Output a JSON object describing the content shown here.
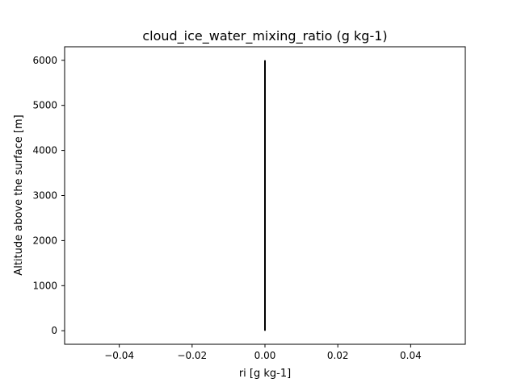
{
  "chart_data": {
    "type": "line",
    "title": "cloud_ice_water_mixing_ratio (g kg-1)",
    "xlabel": "ri [g kg-1]",
    "ylabel": "Altitude above the surface [m]",
    "xlim": [
      -0.055,
      0.055
    ],
    "ylim": [
      -300,
      6300
    ],
    "xticks": [
      -0.04,
      -0.02,
      0.0,
      0.02,
      0.04
    ],
    "xtick_labels": [
      "−0.04",
      "−0.02",
      "0.00",
      "0.02",
      "0.04"
    ],
    "yticks": [
      0,
      1000,
      2000,
      3000,
      4000,
      5000,
      6000
    ],
    "ytick_labels": [
      "0",
      "1000",
      "2000",
      "3000",
      "4000",
      "5000",
      "6000"
    ],
    "grid": false,
    "series": [
      {
        "color": "#000000",
        "x": [
          0,
          0
        ],
        "y": [
          0,
          6000
        ]
      }
    ]
  }
}
